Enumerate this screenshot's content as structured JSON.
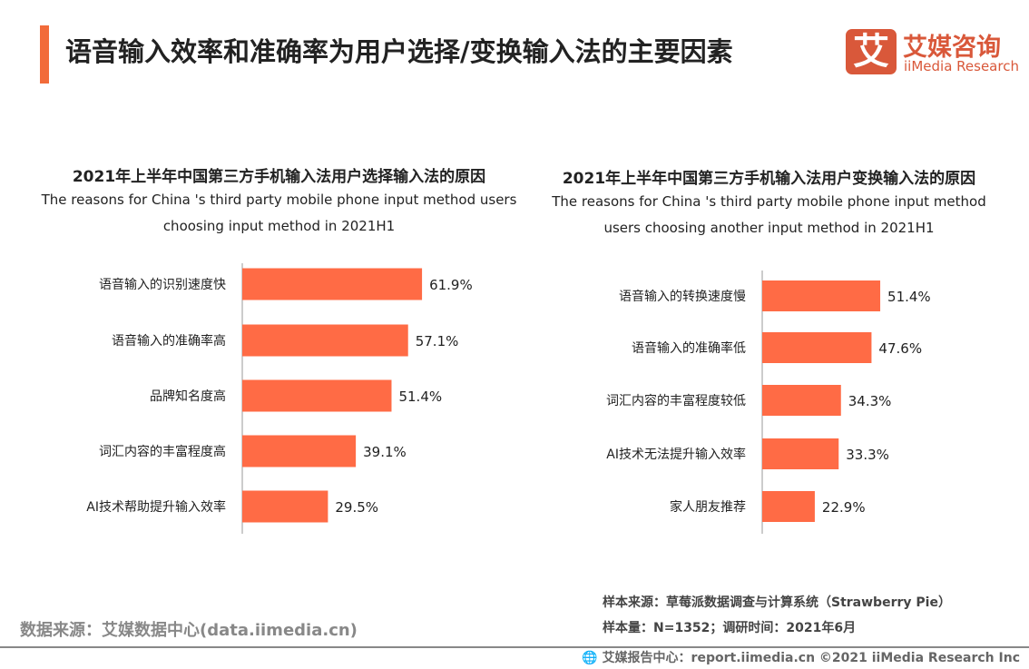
{
  "header": {
    "title": "语音输入效率和准确率为用户选择/变换输入法的主要因素",
    "accent_color": "#f26b3a"
  },
  "logo": {
    "mark": "艾",
    "cn": "艾媒咨询",
    "en": "iiMedia Research",
    "color": "#d9583a"
  },
  "chart_data": [
    {
      "type": "bar",
      "orientation": "horizontal",
      "title": "2021年上半年中国第三方手机输入法用户选择输入法的原因",
      "subtitle_lines": [
        "The reasons for China 's third party mobile phone input method users",
        "choosing input method in 2021H1"
      ],
      "categories": [
        "语音输入的识别速度快",
        "语音输入的准确率高",
        "品牌知名度高",
        "词汇内容的丰富程度高",
        "AI技术帮助提升输入效率"
      ],
      "values": [
        61.9,
        57.1,
        51.4,
        39.1,
        29.5
      ],
      "labels": [
        "61.9%",
        "57.1%",
        "51.4%",
        "39.1%",
        "29.5%"
      ],
      "unit": "%",
      "color": "#ff6b45",
      "grid": false
    },
    {
      "type": "bar",
      "orientation": "horizontal",
      "title": "2021年上半年中国第三方手机输入法用户变换输入法的原因",
      "subtitle_lines": [
        "The reasons for China 's third party mobile phone input method",
        "users choosing another  input method in 2021H1"
      ],
      "categories": [
        "语音输入的转换速度慢",
        "语音输入的准确率低",
        "词汇内容的丰富程度较低",
        "AI技术无法提升输入效率",
        "家人朋友推荐"
      ],
      "values": [
        51.4,
        47.6,
        34.3,
        33.3,
        22.9
      ],
      "labels": [
        "51.4%",
        "47.6%",
        "34.3%",
        "33.3%",
        "22.9%"
      ],
      "unit": "%",
      "color": "#ff6b45",
      "grid": false
    }
  ],
  "notes": {
    "sample_source": "样本来源：草莓派数据调查与计算系统（Strawberry Pie）",
    "sample_size": "样本量：N=1352；调研时间：2021年6月"
  },
  "source": "数据来源：艾媒数据中心(data.iimedia.cn)",
  "footer": "艾媒报告中心：report.iimedia.cn   ©2021  iiMedia Research  Inc"
}
